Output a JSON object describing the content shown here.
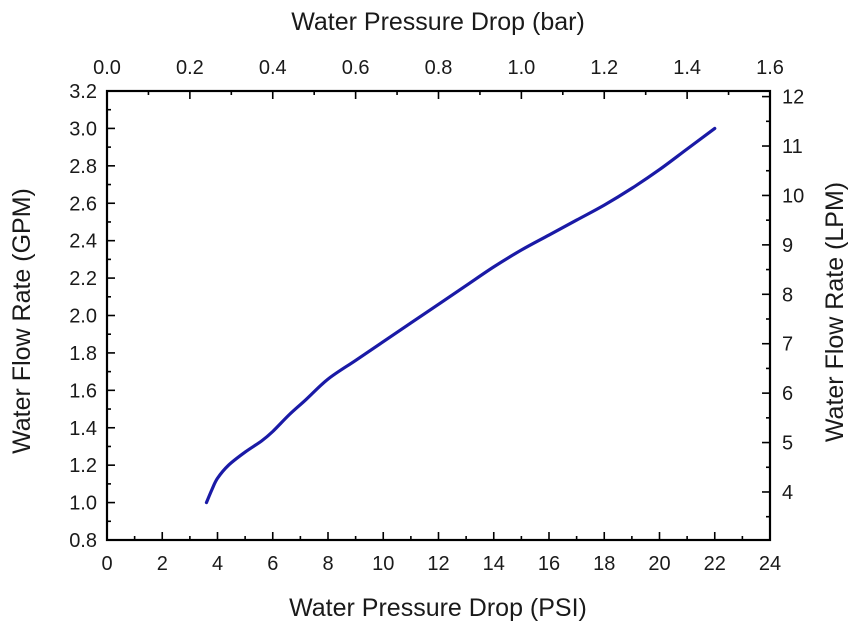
{
  "chart_data": {
    "type": "line",
    "title": "",
    "xlabel": "Water Pressure Drop (PSI)",
    "ylabel": "Water Flow Rate (GPM)",
    "xlim": [
      0,
      24
    ],
    "ylim": [
      0.8,
      3.2
    ],
    "x_ticks": [
      "0",
      "2",
      "4",
      "6",
      "8",
      "10",
      "12",
      "14",
      "16",
      "18",
      "20",
      "22",
      "24"
    ],
    "y_ticks": [
      "0.8",
      "1.0",
      "1.2",
      "1.4",
      "1.6",
      "1.8",
      "2.0",
      "2.2",
      "2.4",
      "2.6",
      "2.8",
      "3.0",
      "3.2"
    ],
    "secondary_x": {
      "label": "Water Pressure Drop (bar)",
      "lim": [
        0,
        1.6
      ],
      "ticks": [
        "0.0",
        "0.2",
        "0.4",
        "0.6",
        "0.8",
        "1.0",
        "1.2",
        "1.4",
        "1.6"
      ]
    },
    "secondary_y": {
      "label": "Water Flow Rate (LPM)",
      "ticks": [
        "4",
        "5",
        "6",
        "7",
        "8",
        "9",
        "10",
        "11",
        "12"
      ]
    },
    "grid": false,
    "series": [
      {
        "color": "#1a1aa6",
        "x": [
          3.6,
          3.8,
          4.0,
          4.4,
          5.0,
          5.6,
          6.0,
          6.6,
          7.2,
          8.0,
          9.0,
          10.0,
          11.0,
          12.0,
          13.0,
          14.0,
          15.0,
          16.0,
          17.0,
          18.0,
          19.0,
          20.0,
          21.0,
          22.0
        ],
        "y": [
          1.0,
          1.07,
          1.13,
          1.2,
          1.27,
          1.33,
          1.38,
          1.47,
          1.55,
          1.66,
          1.76,
          1.86,
          1.96,
          2.06,
          2.16,
          2.26,
          2.35,
          2.43,
          2.51,
          2.59,
          2.68,
          2.78,
          2.89,
          3.0
        ]
      }
    ]
  }
}
